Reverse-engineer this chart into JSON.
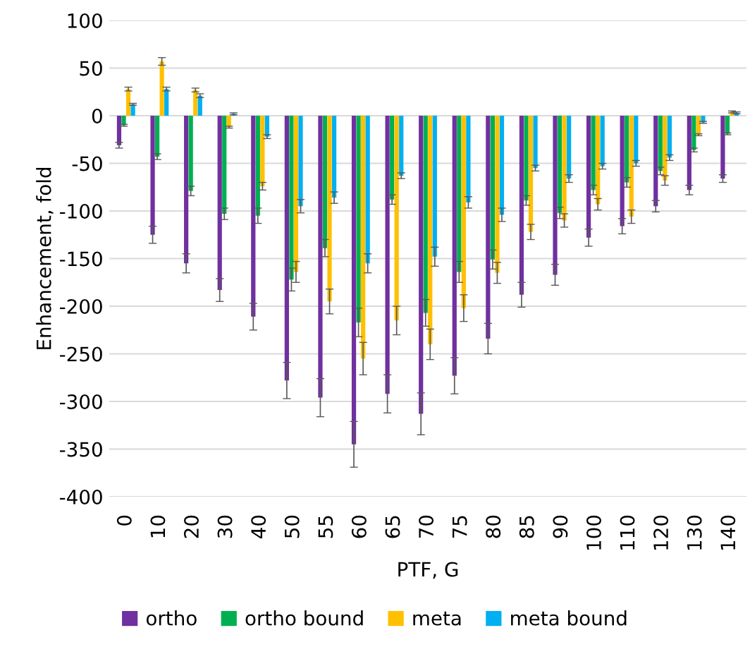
{
  "chart_data": {
    "type": "bar",
    "xlabel": "PTF, G",
    "ylabel": "Enhancement, fold",
    "categories": [
      "0",
      "10",
      "20",
      "30",
      "40",
      "50",
      "55",
      "60",
      "65",
      "70",
      "75",
      "80",
      "85",
      "90",
      "100",
      "110",
      "120",
      "130",
      "140"
    ],
    "series": [
      {
        "name": "ortho",
        "color": "#7030a0",
        "values": [
          -31,
          -125,
          -155,
          -183,
          -211,
          -278,
          -296,
          -345,
          -292,
          -313,
          -273,
          -234,
          -188,
          -167,
          -128,
          -116,
          -95,
          -78,
          -66
        ],
        "errors": [
          3,
          9,
          10,
          12,
          14,
          19,
          20,
          24,
          20,
          22,
          19,
          16,
          13,
          11,
          9,
          8,
          6,
          5,
          4
        ]
      },
      {
        "name": "ortho bound",
        "color": "#00b050",
        "values": [
          -10,
          -43,
          -79,
          -103,
          -105,
          -172,
          -139,
          -217,
          -88,
          -207,
          -164,
          -151,
          -89,
          -102,
          -78,
          -70,
          -58,
          -36,
          -19
        ],
        "errors": [
          1,
          3,
          5,
          6,
          8,
          12,
          9,
          15,
          5,
          14,
          11,
          10,
          5,
          6,
          5,
          5,
          4,
          2,
          1
        ]
      },
      {
        "name": "meta",
        "color": "#ffc000",
        "values": [
          28,
          57,
          27,
          -12,
          -74,
          -164,
          -195,
          -255,
          -215,
          -240,
          -202,
          -165,
          -122,
          -110,
          -93,
          -106,
          -68,
          -20,
          4
        ],
        "errors": [
          2,
          4,
          2,
          1,
          4,
          11,
          13,
          17,
          15,
          16,
          14,
          11,
          8,
          7,
          6,
          7,
          5,
          1,
          1
        ]
      },
      {
        "name": "meta bound",
        "color": "#00b0f0",
        "values": [
          12,
          28,
          21,
          2,
          -22,
          -95,
          -86,
          -155,
          -63,
          -148,
          -91,
          -104,
          -55,
          -66,
          -53,
          -50,
          -44,
          -7,
          3
        ],
        "errors": [
          1,
          2,
          2,
          1,
          2,
          7,
          6,
          10,
          3,
          10,
          6,
          7,
          3,
          4,
          3,
          3,
          3,
          1,
          1
        ]
      }
    ],
    "ylim": [
      -400,
      100
    ],
    "yticks": [
      -400,
      -350,
      -300,
      -250,
      -200,
      -150,
      -100,
      -50,
      0,
      50,
      100
    ],
    "grid": "y",
    "legend": "bottom"
  }
}
